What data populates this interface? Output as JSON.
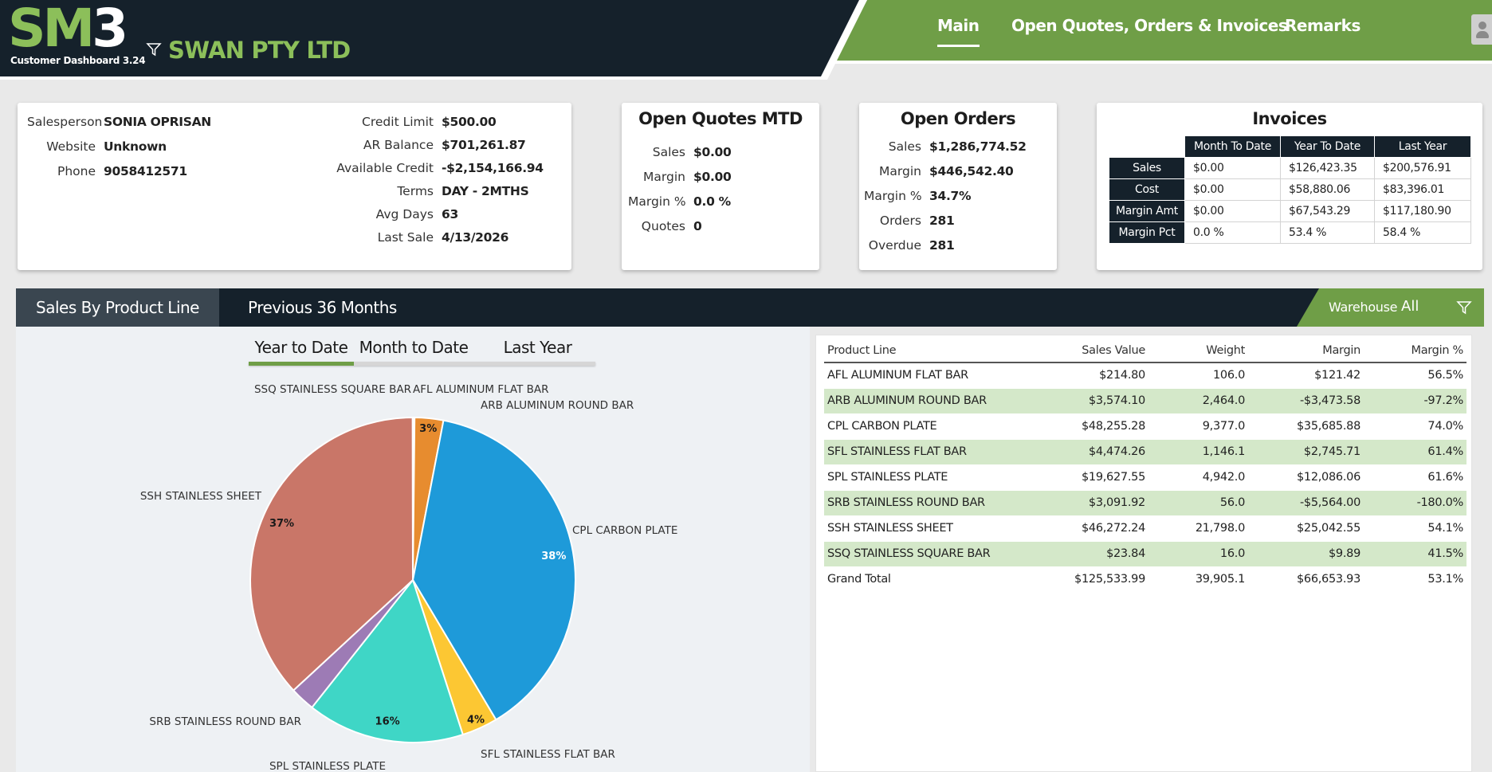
{
  "header": {
    "logo_main": "SM",
    "logo_digit": "3",
    "logo_sub": "Customer Dashboard 3.24",
    "company": "SWAN PTY LTD",
    "nav": {
      "main": "Main",
      "open": "Open Quotes, Orders & Invoices",
      "remarks": "Remarks"
    }
  },
  "colors": {
    "dark": "#15212b",
    "accent": "#6f9e47",
    "logo": "#8cbf5a",
    "row_alt": "#d4e8c9"
  },
  "customer": {
    "salesperson_label": "Salesperson",
    "salesperson": "SONIA OPRISAN",
    "website_label": "Website",
    "website": "Unknown",
    "phone_label": "Phone",
    "phone": "9058412571",
    "credit_limit_label": "Credit Limit",
    "credit_limit": "$500.00",
    "ar_balance_label": "AR Balance",
    "ar_balance": "$701,261.87",
    "available_credit_label": "Available Credit",
    "available_credit": "-$2,154,166.94",
    "terms_label": "Terms",
    "terms": "DAY - 2MTHS",
    "avg_days_label": "Avg Days",
    "avg_days": "63",
    "last_sale_label": "Last Sale",
    "last_sale": "4/13/2026"
  },
  "quotes": {
    "title": "Open Quotes MTD",
    "sales_label": "Sales",
    "sales": "$0.00",
    "margin_label": "Margin",
    "margin": "$0.00",
    "margin_pct_label": "Margin %",
    "margin_pct": "0.0 %",
    "quotes_label": "Quotes",
    "quotes": "0"
  },
  "orders": {
    "title": "Open Orders",
    "sales_label": "Sales",
    "sales": "$1,286,774.52",
    "margin_label": "Margin",
    "margin": "$446,542.40",
    "margin_pct_label": "Margin %",
    "margin_pct": "34.7%",
    "orders_label": "Orders",
    "orders": "281",
    "overdue_label": "Overdue",
    "overdue": "281"
  },
  "invoices": {
    "title": "Invoices",
    "columns": [
      "Month To Date",
      "Year To Date",
      "Last Year"
    ],
    "rows": [
      {
        "label": "Sales",
        "values": [
          "$0.00",
          "$126,423.35",
          "$200,576.91"
        ]
      },
      {
        "label": "Cost",
        "values": [
          "$0.00",
          "$58,880.06",
          "$83,396.01"
        ]
      },
      {
        "label": "Margin Amt",
        "values": [
          "$0.00",
          "$67,543.29",
          "$117,180.90"
        ]
      },
      {
        "label": "Margin Pct",
        "values": [
          "0.0 %",
          "53.4 %",
          "58.4 %"
        ]
      }
    ]
  },
  "section": {
    "tab_active": "Sales By Product Line",
    "tab_2": "Previous 36 Months",
    "warehouse_label": "Warehouse",
    "warehouse_value": "All"
  },
  "periods": {
    "ytd": "Year to Date",
    "mtd": "Month to Date",
    "ly": "Last Year",
    "selected": "Year to Date"
  },
  "chart_data": {
    "type": "pie",
    "slices": [
      {
        "label": "AFL ALUMINUM FLAT BAR",
        "value": 214.8,
        "pct_label": "",
        "color": "#e3a04a"
      },
      {
        "label": "ARB ALUMINUM ROUND BAR",
        "value": 3574.1,
        "pct_label": "3%",
        "color": "#e78c2f"
      },
      {
        "label": "CPL CARBON PLATE",
        "value": 48255.28,
        "pct_label": "38%",
        "color": "#1e9ad9"
      },
      {
        "label": "SFL STAINLESS FLAT BAR",
        "value": 4474.26,
        "pct_label": "4%",
        "color": "#fcc733"
      },
      {
        "label": "SPL STAINLESS PLATE",
        "value": 19627.55,
        "pct_label": "16%",
        "color": "#3fd6c6"
      },
      {
        "label": "SRB STAINLESS ROUND BAR",
        "value": 3091.92,
        "pct_label": "",
        "color": "#9d7bb5"
      },
      {
        "label": "SSH STAINLESS SHEET",
        "value": 46272.24,
        "pct_label": "37%",
        "color": "#c97668"
      },
      {
        "label": "SSQ STAINLESS SQUARE BAR",
        "value": 23.84,
        "pct_label": "",
        "color": "#8b8b8b"
      }
    ]
  },
  "product_table": {
    "headers": [
      "Product Line",
      "Sales Value",
      "Weight",
      "Margin",
      "Margin %"
    ],
    "rows": [
      [
        "AFL ALUMINUM FLAT BAR",
        "$214.80",
        "106.0",
        "$121.42",
        "56.5%"
      ],
      [
        "ARB ALUMINUM ROUND BAR",
        "$3,574.10",
        "2,464.0",
        "-$3,473.58",
        "-97.2%"
      ],
      [
        "CPL CARBON PLATE",
        "$48,255.28",
        "9,377.0",
        "$35,685.88",
        "74.0%"
      ],
      [
        "SFL STAINLESS FLAT BAR",
        "$4,474.26",
        "1,146.1",
        "$2,745.71",
        "61.4%"
      ],
      [
        "SPL STAINLESS PLATE",
        "$19,627.55",
        "4,942.0",
        "$12,086.06",
        "61.6%"
      ],
      [
        "SRB STAINLESS ROUND BAR",
        "$3,091.92",
        "56.0",
        "-$5,564.00",
        "-180.0%"
      ],
      [
        "SSH STAINLESS SHEET",
        "$46,272.24",
        "21,798.0",
        "$25,042.55",
        "54.1%"
      ],
      [
        "SSQ STAINLESS SQUARE BAR",
        "$23.84",
        "16.0",
        "$9.89",
        "41.5%"
      ]
    ],
    "total": [
      "Grand Total",
      "$125,533.99",
      "39,905.1",
      "$66,653.93",
      "53.1%"
    ]
  }
}
